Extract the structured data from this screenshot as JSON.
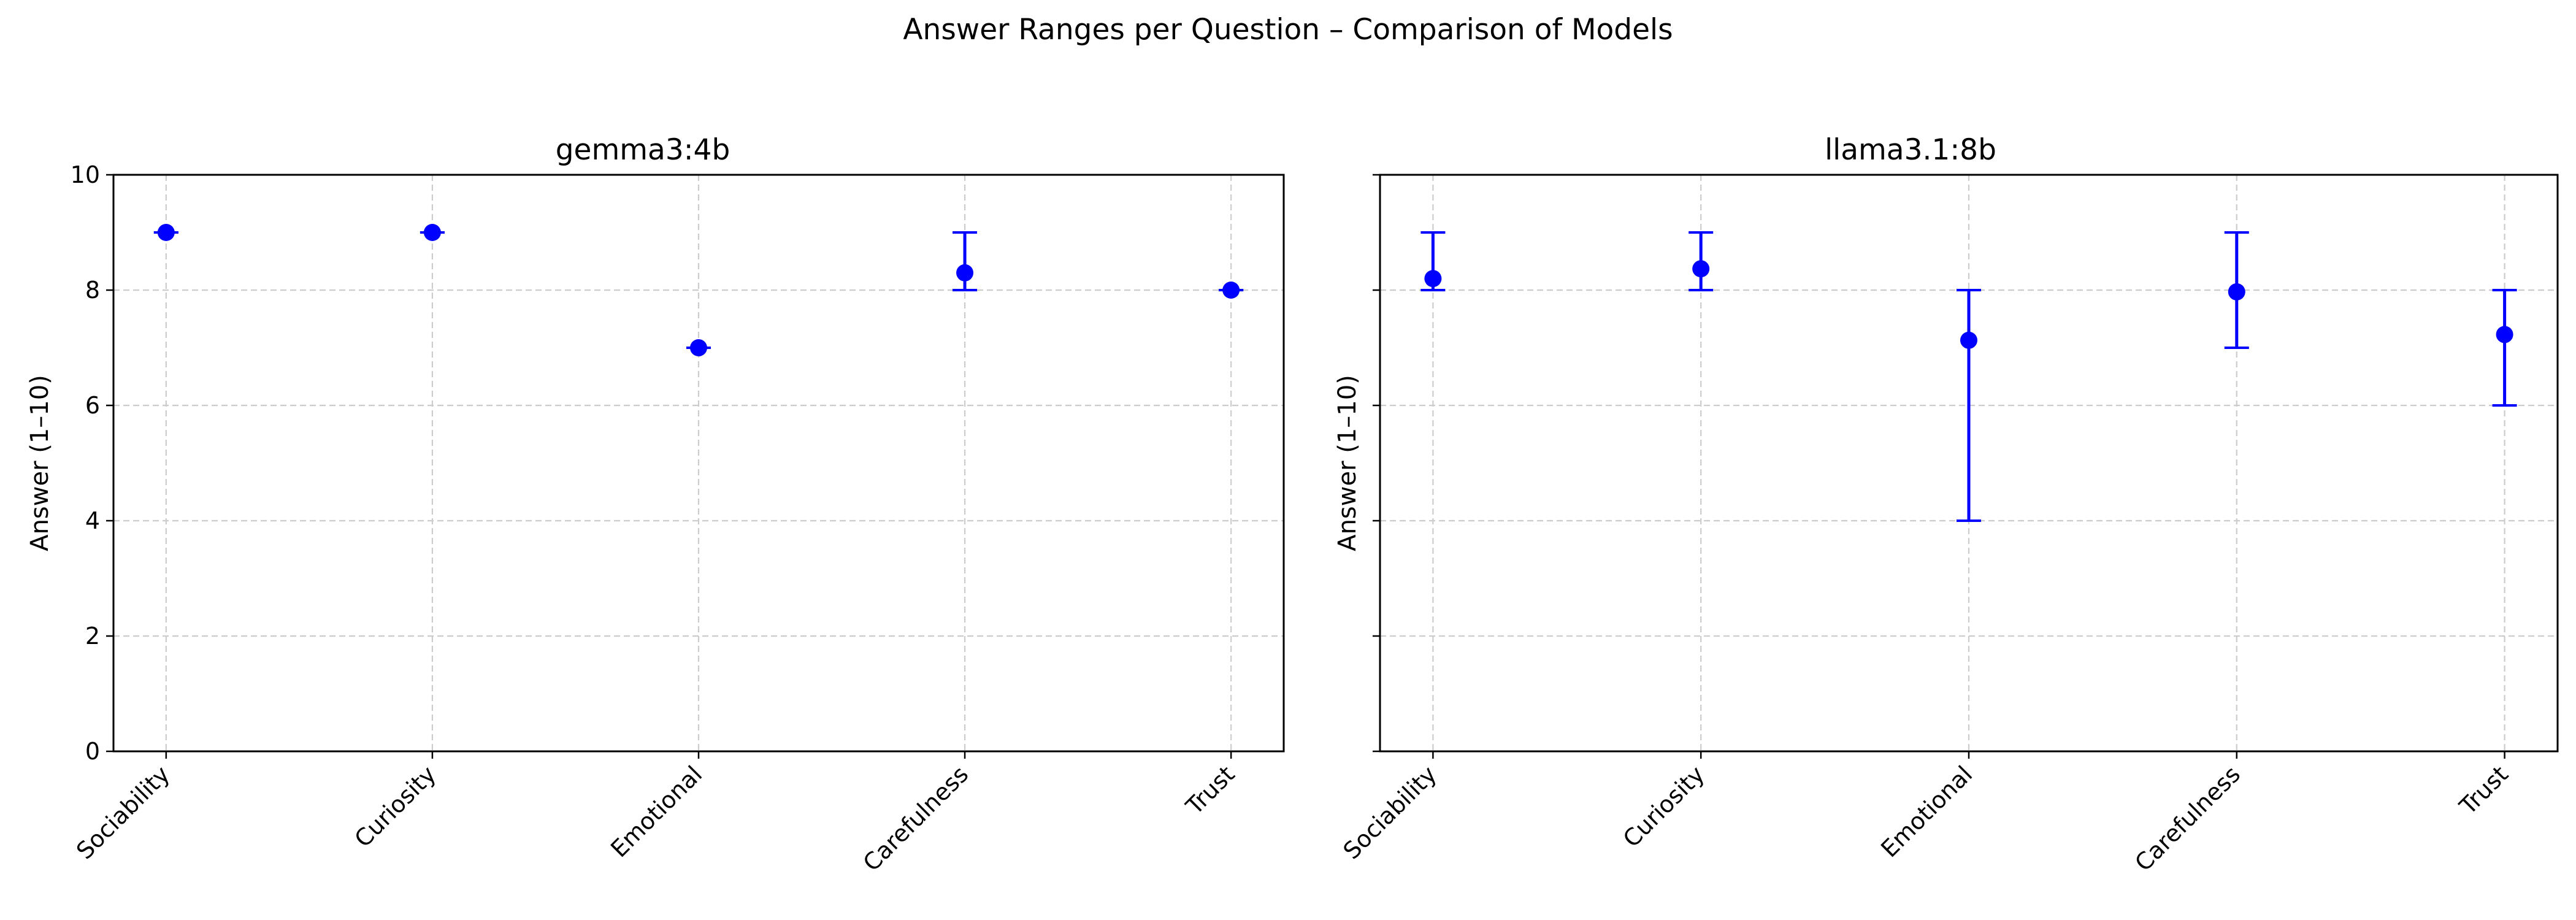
{
  "title": "Answer Ranges per Question – Comparison of Models",
  "chart_data": [
    {
      "type": "scatter",
      "title": "gemma3:4b",
      "xlabel": "",
      "ylabel": "Answer (1–10)",
      "ylim": [
        0,
        10
      ],
      "yticks": [
        "0",
        "2",
        "4",
        "6",
        "8",
        "10"
      ],
      "categories": [
        "Sociability",
        "Curiosity",
        "Emotional",
        "Carefulness",
        "Trust"
      ],
      "series": [
        {
          "values": [
            9.0,
            9.0,
            7.0,
            8.3,
            8.0
          ],
          "min": [
            9,
            9,
            7,
            8,
            8
          ],
          "max": [
            9,
            9,
            7,
            9,
            8
          ]
        }
      ],
      "grid": true,
      "color": "#0000ff"
    },
    {
      "type": "scatter",
      "title": "llama3.1:8b",
      "xlabel": "",
      "ylabel": "Answer (1–10)",
      "ylim": [
        0,
        10
      ],
      "yticks": [
        "0",
        "2",
        "4",
        "6",
        "8",
        "10"
      ],
      "categories": [
        "Sociability",
        "Curiosity",
        "Emotional",
        "Carefulness",
        "Trust"
      ],
      "series": [
        {
          "values": [
            8.2,
            8.37,
            7.13,
            7.97,
            7.23
          ],
          "min": [
            8,
            8,
            4,
            7,
            6
          ],
          "max": [
            9,
            9,
            8,
            9,
            8
          ]
        }
      ],
      "grid": true,
      "color": "#0000ff"
    }
  ]
}
